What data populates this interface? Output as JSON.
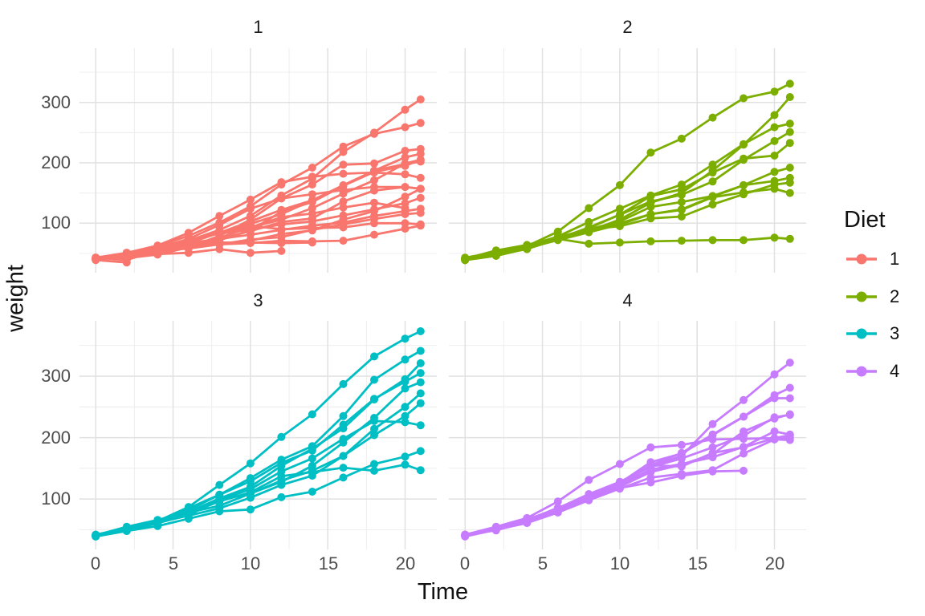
{
  "legend": {
    "title": "Diet",
    "items": [
      {
        "label": "1",
        "color": "#F8766D"
      },
      {
        "label": "2",
        "color": "#7CAE00"
      },
      {
        "label": "3",
        "color": "#00BFC4"
      },
      {
        "label": "4",
        "color": "#C77CFF"
      }
    ]
  },
  "chart_data": {
    "type": "line",
    "title": "",
    "xlabel": "Time",
    "ylabel": "weight",
    "facet_variable": "Diet",
    "legend_position": "right",
    "grid": "on",
    "xlim": [
      -1.05,
      22.05
    ],
    "ylim": [
      18,
      390
    ],
    "x_ticks": [
      0,
      5,
      10,
      15,
      20
    ],
    "y_ticks": [
      100,
      200,
      300
    ],
    "x_minor_ticks": [
      2.5,
      7.5,
      12.5,
      17.5
    ],
    "y_minor_ticks": [
      50,
      150,
      250,
      350
    ],
    "x_tick_labels": [
      "0",
      "5",
      "10",
      "15",
      "20"
    ],
    "y_tick_labels": [
      "300",
      "200",
      "100"
    ],
    "times": [
      0,
      2,
      4,
      6,
      8,
      10,
      12,
      14,
      16,
      18,
      20,
      21
    ],
    "facets": [
      {
        "label": "1",
        "color": "#F8766D",
        "chicks": [
          {
            "chick": "1",
            "weights": [
              42,
              51,
              59,
              64,
              76,
              93,
              106,
              125,
              149,
              171,
              199,
              205
            ]
          },
          {
            "chick": "2",
            "weights": [
              40,
              49,
              58,
              72,
              84,
              103,
              122,
              138,
              162,
              187,
              209,
              215
            ]
          },
          {
            "chick": "3",
            "weights": [
              43,
              39,
              55,
              67,
              84,
              99,
              115,
              138,
              163,
              187,
              198,
              202
            ]
          },
          {
            "chick": "4",
            "weights": [
              42,
              49,
              56,
              67,
              74,
              87,
              102,
              108,
              136,
              154,
              160,
              157
            ]
          },
          {
            "chick": "5",
            "weights": [
              41,
              42,
              48,
              60,
              79,
              106,
              141,
              164,
              197,
              199,
              220,
              223
            ]
          },
          {
            "chick": "6",
            "weights": [
              41,
              49,
              59,
              74,
              97,
              124,
              141,
              148,
              155,
              160,
              160,
              157
            ]
          },
          {
            "chick": "7",
            "weights": [
              41,
              49,
              57,
              71,
              89,
              112,
              146,
              174,
              218,
              250,
              288,
              305
            ]
          },
          {
            "chick": "8",
            "weights": [
              42,
              50,
              61,
              71,
              84,
              93,
              110,
              116,
              126,
              134,
              125
            ]
          },
          {
            "chick": "9",
            "weights": [
              42,
              51,
              59,
              68,
              85,
              96,
              90,
              92,
              93,
              100,
              100,
              98
            ]
          },
          {
            "chick": "10",
            "weights": [
              41,
              44,
              52,
              63,
              74,
              81,
              89,
              96,
              101,
              112,
              120,
              124
            ]
          },
          {
            "chick": "11",
            "weights": [
              43,
              51,
              63,
              84,
              112,
              139,
              168,
              177,
              182,
              184,
              181,
              175
            ]
          },
          {
            "chick": "12",
            "weights": [
              41,
              49,
              56,
              62,
              72,
              88,
              119,
              135,
              162,
              185,
              195,
              205
            ]
          },
          {
            "chick": "13",
            "weights": [
              41,
              48,
              53,
              60,
              65,
              67,
              71,
              70,
              71,
              81,
              91,
              96
            ]
          },
          {
            "chick": "14",
            "weights": [
              41,
              49,
              62,
              79,
              101,
              128,
              164,
              192,
              227,
              248,
              259,
              266
            ]
          },
          {
            "chick": "15",
            "weights": [
              41,
              49,
              56,
              64,
              68,
              68,
              67,
              68
            ]
          },
          {
            "chick": "16",
            "weights": [
              41,
              45,
              49,
              51,
              57,
              51,
              54
            ]
          },
          {
            "chick": "17",
            "weights": [
              42,
              51,
              61,
              72,
              83,
              89,
              98,
              103,
              113,
              123,
              133,
              142
            ]
          },
          {
            "chick": "18",
            "weights": [
              39,
              35
            ]
          },
          {
            "chick": "19",
            "weights": [
              43,
              48,
              55,
              62,
              65,
              71,
              82,
              88,
              106,
              120,
              144,
              157
            ]
          },
          {
            "chick": "20",
            "weights": [
              41,
              47,
              54,
              58,
              65,
              73,
              77,
              89,
              98,
              107,
              115,
              117
            ]
          }
        ]
      },
      {
        "label": "2",
        "color": "#7CAE00",
        "chicks": [
          {
            "chick": "21",
            "weights": [
              40,
              50,
              62,
              86,
              125,
              163,
              217,
              240,
              275,
              307,
              318,
              331
            ]
          },
          {
            "chick": "22",
            "weights": [
              41,
              55,
              64,
              77,
              90,
              95,
              108,
              111,
              131,
              148,
              164,
              167
            ]
          },
          {
            "chick": "23",
            "weights": [
              43,
              52,
              61,
              73,
              90,
              103,
              127,
              135,
              145,
              163,
              170,
              175
            ]
          },
          {
            "chick": "24",
            "weights": [
              42,
              52,
              58,
              74,
              66,
              68,
              70,
              71,
              72,
              72,
              76,
              74
            ]
          },
          {
            "chick": "25",
            "weights": [
              40,
              49,
              62,
              78,
              102,
              124,
              146,
              164,
              197,
              231,
              259,
              265
            ]
          },
          {
            "chick": "26",
            "weights": [
              42,
              48,
              57,
              74,
              93,
              114,
              136,
              147,
              169,
              205,
              236,
              251
            ]
          },
          {
            "chick": "27",
            "weights": [
              39,
              46,
              58,
              73,
              87,
              100,
              115,
              123,
              144,
              163,
              185,
              192
            ]
          },
          {
            "chick": "28",
            "weights": [
              39,
              46,
              58,
              73,
              92,
              114,
              145,
              156,
              184,
              207,
              212,
              233
            ]
          },
          {
            "chick": "29",
            "weights": [
              39,
              48,
              59,
              74,
              87,
              106,
              134,
              150,
              187,
              230,
              279,
              309
            ]
          },
          {
            "chick": "30",
            "weights": [
              42,
              48,
              59,
              72,
              85,
              98,
              115,
              122,
              143,
              151,
              157,
              150
            ]
          }
        ]
      },
      {
        "label": "3",
        "color": "#00BFC4",
        "chicks": [
          {
            "chick": "31",
            "weights": [
              42,
              53,
              62,
              73,
              85,
              102,
              123,
              138,
              170,
              204,
              235,
              256
            ]
          },
          {
            "chick": "32",
            "weights": [
              41,
              49,
              65,
              82,
              107,
              129,
              159,
              179,
              221,
              263,
              291,
              305
            ]
          },
          {
            "chick": "33",
            "weights": [
              39,
              50,
              63,
              77,
              96,
              111,
              137,
              144,
              151,
              146,
              156,
              147
            ]
          },
          {
            "chick": "34",
            "weights": [
              41,
              49,
              63,
              85,
              107,
              134,
              164,
              186,
              235,
              294,
              327,
              341
            ]
          },
          {
            "chick": "35",
            "weights": [
              41,
              53,
              64,
              87,
              123,
              158,
              201,
              238,
              287,
              332,
              361,
              373
            ]
          },
          {
            "chick": "36",
            "weights": [
              39,
              48,
              61,
              76,
              98,
              116,
              145,
              166,
              198,
              227,
              225,
              220
            ]
          },
          {
            "chick": "37",
            "weights": [
              41,
              48,
              56,
              68,
              80,
              83,
              103,
              112,
              135,
              157,
              169,
              178
            ]
          },
          {
            "chick": "38",
            "weights": [
              41,
              49,
              61,
              74,
              98,
              109,
              128,
              154,
              192,
              232,
              280,
              290
            ]
          },
          {
            "chick": "39",
            "weights": [
              42,
              50,
              61,
              78,
              89,
              109,
              130,
              146,
              170,
              214,
              250,
              272
            ]
          },
          {
            "chick": "40",
            "weights": [
              41,
              55,
              66,
              79,
              101,
              120,
              154,
              182,
              215,
              262,
              295,
              321
            ]
          }
        ]
      },
      {
        "label": "4",
        "color": "#C77CFF",
        "chicks": [
          {
            "chick": "41",
            "weights": [
              42,
              51,
              66,
              85,
              103,
              124,
              155,
              153,
              175,
              184,
              199,
              204
            ]
          },
          {
            "chick": "42",
            "weights": [
              42,
              49,
              63,
              84,
              103,
              126,
              160,
              174,
              204,
              234,
              269,
              281
            ]
          },
          {
            "chick": "43",
            "weights": [
              42,
              55,
              69,
              96,
              131,
              157,
              184,
              188,
              197,
              198,
              199,
              200
            ]
          },
          {
            "chick": "44",
            "weights": [
              42,
              51,
              65,
              86,
              103,
              118,
              127,
              138,
              145,
              146
            ]
          },
          {
            "chick": "45",
            "weights": [
              41,
              50,
              61,
              78,
              98,
              117,
              135,
              141,
              147,
              174,
              197,
              196
            ]
          },
          {
            "chick": "46",
            "weights": [
              40,
              52,
              62,
              82,
              101,
              120,
              144,
              156,
              173,
              210,
              231,
              238
            ]
          },
          {
            "chick": "47",
            "weights": [
              41,
              53,
              66,
              79,
              100,
              123,
              148,
              157,
              168,
              185,
              210,
              205
            ]
          },
          {
            "chick": "48",
            "weights": [
              39,
              50,
              62,
              80,
              104,
              125,
              154,
              170,
              222,
              261,
              303,
              322
            ]
          },
          {
            "chick": "49",
            "weights": [
              40,
              53,
              64,
              85,
              108,
              128,
              152,
              166,
              184,
              203,
              233,
              237
            ]
          },
          {
            "chick": "50",
            "weights": [
              41,
              54,
              67,
              84,
              105,
              122,
              155,
              175,
              205,
              234,
              264,
              264
            ]
          }
        ]
      }
    ]
  }
}
